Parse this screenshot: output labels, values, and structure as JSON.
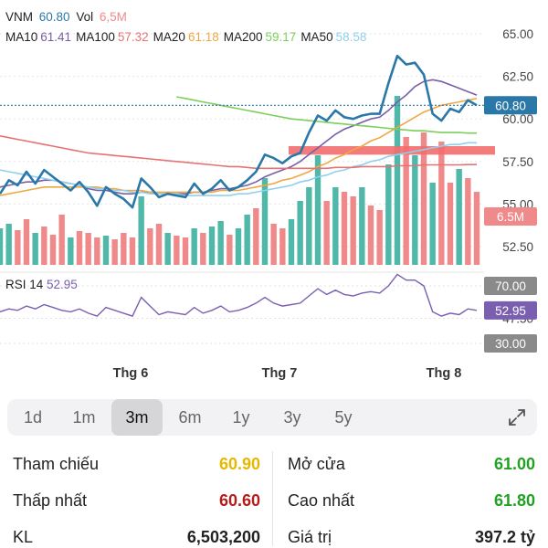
{
  "header": {
    "symbol": "VNM",
    "price": "60.80",
    "vol_label": "Vol",
    "vol": "6,5M"
  },
  "ma_legend": [
    {
      "label": "MA10",
      "value": "61.41",
      "color": "#7b5ea7"
    },
    {
      "label": "MA100",
      "value": "57.32",
      "color": "#e57373"
    },
    {
      "label": "MA20",
      "value": "61.18",
      "color": "#f0a742"
    },
    {
      "label": "MA200",
      "value": "59.17",
      "color": "#7ccf5a"
    },
    {
      "label": "MA50",
      "value": "58.58",
      "color": "#8fd0ee"
    }
  ],
  "colors": {
    "price_line": "#2a78a8",
    "vol_up": "#4fb8a9",
    "vol_down": "#f08a8a",
    "rsi_line": "#7a5fb0",
    "support_zone": "#f26d6d"
  },
  "chart_data": {
    "type": "line",
    "price_axis": {
      "ticks": [
        "65.00",
        "62.50",
        "60.00",
        "57.50",
        "55.00",
        "52.50"
      ],
      "ylim": [
        52.5,
        65.0
      ]
    },
    "price_current_label": "60.80",
    "volume_current_label": "6.5M",
    "x_labels": [
      "Thg 6",
      "Thg 7",
      "Thg 8"
    ],
    "price": [
      55.6,
      56.4,
      56.1,
      56.9,
      56.2,
      57.0,
      56.6,
      56.2,
      55.8,
      56.3,
      55.7,
      54.9,
      56.0,
      55.6,
      55.3,
      54.8,
      56.5,
      56.0,
      55.4,
      55.6,
      55.5,
      55.4,
      56.2,
      55.6,
      55.9,
      56.4,
      55.8,
      56.0,
      56.4,
      56.9,
      57.9,
      57.7,
      57.4,
      57.8,
      58.0,
      59.2,
      60.2,
      59.9,
      60.5,
      60.1,
      60.0,
      60.2,
      60.3,
      60.3,
      62.1,
      63.7,
      63.2,
      63.3,
      62.6,
      60.3,
      59.9,
      60.6,
      60.4,
      61.1,
      60.8
    ],
    "ma_series": [
      {
        "name": "MA10",
        "values": [
          56.0,
          56.1,
          56.2,
          56.3,
          56.3,
          56.4,
          56.4,
          56.3,
          56.2,
          56.1,
          55.9,
          55.8,
          55.8,
          55.7,
          55.6,
          55.6,
          55.7,
          55.7,
          55.6,
          55.6,
          55.6,
          55.6,
          55.7,
          55.7,
          55.8,
          55.9,
          55.9,
          56.0,
          56.1,
          56.3,
          56.6,
          56.8,
          57.0,
          57.2,
          57.5,
          57.9,
          58.3,
          58.7,
          59.1,
          59.4,
          59.6,
          59.8,
          60.0,
          60.1,
          60.5,
          61.0,
          61.4,
          61.9,
          62.2,
          62.3,
          62.2,
          62.0,
          61.8,
          61.6,
          61.4
        ]
      },
      {
        "name": "MA20",
        "values": [
          55.5,
          55.6,
          55.7,
          55.8,
          55.9,
          56.0,
          56.0,
          56.0,
          56.0,
          56.0,
          56.0,
          56.0,
          55.9,
          55.9,
          55.8,
          55.8,
          55.8,
          55.7,
          55.7,
          55.7,
          55.7,
          55.7,
          55.7,
          55.7,
          55.7,
          55.8,
          55.8,
          55.8,
          55.9,
          56.0,
          56.1,
          56.2,
          56.4,
          56.5,
          56.7,
          56.9,
          57.2,
          57.4,
          57.7,
          57.9,
          58.2,
          58.4,
          58.7,
          58.9,
          59.2,
          59.5,
          59.8,
          60.1,
          60.4,
          60.6,
          60.8,
          60.9,
          61.0,
          61.1,
          61.2
        ]
      },
      {
        "name": "MA50",
        "values": [
          57.0,
          56.9,
          56.8,
          56.7,
          56.6,
          56.5,
          56.4,
          56.3,
          56.2,
          56.1,
          56.0,
          55.9,
          55.9,
          55.8,
          55.8,
          55.7,
          55.7,
          55.6,
          55.6,
          55.6,
          55.6,
          55.5,
          55.5,
          55.5,
          55.5,
          55.5,
          55.5,
          55.6,
          55.6,
          55.7,
          55.8,
          55.9,
          56.0,
          56.1,
          56.3,
          56.4,
          56.6,
          56.7,
          56.9,
          57.0,
          57.2,
          57.3,
          57.5,
          57.6,
          57.8,
          57.9,
          58.0,
          58.1,
          58.2,
          58.3,
          58.4,
          58.5,
          58.5,
          58.6,
          58.6
        ]
      },
      {
        "name": "MA100",
        "values": [
          59.0,
          58.9,
          58.8,
          58.7,
          58.6,
          58.5,
          58.4,
          58.3,
          58.2,
          58.1,
          58.0,
          57.95,
          57.9,
          57.85,
          57.8,
          57.75,
          57.7,
          57.65,
          57.6,
          57.55,
          57.5,
          57.45,
          57.4,
          57.35,
          57.3,
          57.25,
          57.2,
          57.2,
          57.15,
          57.1,
          57.1,
          57.1,
          57.1,
          57.1,
          57.1,
          57.1,
          57.1,
          57.1,
          57.15,
          57.15,
          57.15,
          57.2,
          57.2,
          57.2,
          57.2,
          57.25,
          57.25,
          57.25,
          57.3,
          57.3,
          57.3,
          57.3,
          57.3,
          57.32,
          57.32
        ]
      },
      {
        "name": "MA200",
        "values": [
          null,
          null,
          null,
          null,
          null,
          null,
          null,
          null,
          null,
          null,
          null,
          null,
          null,
          null,
          null,
          null,
          null,
          null,
          null,
          null,
          61.3,
          61.2,
          61.1,
          61.0,
          60.9,
          60.8,
          60.7,
          60.6,
          60.5,
          60.4,
          60.3,
          60.2,
          60.1,
          60.0,
          59.95,
          59.9,
          59.85,
          59.8,
          59.75,
          59.7,
          59.65,
          59.6,
          59.55,
          59.5,
          59.45,
          59.4,
          59.35,
          59.3,
          59.3,
          59.25,
          59.2,
          59.2,
          59.2,
          59.17,
          59.17
        ]
      }
    ],
    "volume": [
      {
        "v": 0.4,
        "up": true
      },
      {
        "v": 0.45,
        "up": true
      },
      {
        "v": 0.38,
        "up": false
      },
      {
        "v": 0.5,
        "up": false
      },
      {
        "v": 0.35,
        "up": true
      },
      {
        "v": 0.42,
        "up": false
      },
      {
        "v": 0.33,
        "up": false
      },
      {
        "v": 0.55,
        "up": false
      },
      {
        "v": 0.3,
        "up": true
      },
      {
        "v": 0.37,
        "up": false
      },
      {
        "v": 0.35,
        "up": false
      },
      {
        "v": 0.3,
        "up": false
      },
      {
        "v": 0.32,
        "up": true
      },
      {
        "v": 0.28,
        "up": false
      },
      {
        "v": 0.35,
        "up": false
      },
      {
        "v": 0.3,
        "up": false
      },
      {
        "v": 0.75,
        "up": true
      },
      {
        "v": 0.4,
        "up": false
      },
      {
        "v": 0.45,
        "up": false
      },
      {
        "v": 0.35,
        "up": true
      },
      {
        "v": 0.32,
        "up": false
      },
      {
        "v": 0.3,
        "up": false
      },
      {
        "v": 0.4,
        "up": true
      },
      {
        "v": 0.35,
        "up": false
      },
      {
        "v": 0.42,
        "up": true
      },
      {
        "v": 0.48,
        "up": true
      },
      {
        "v": 0.33,
        "up": false
      },
      {
        "v": 0.4,
        "up": true
      },
      {
        "v": 0.55,
        "up": true
      },
      {
        "v": 0.62,
        "up": false
      },
      {
        "v": 0.95,
        "up": true
      },
      {
        "v": 0.45,
        "up": false
      },
      {
        "v": 0.4,
        "up": false
      },
      {
        "v": 0.5,
        "up": true
      },
      {
        "v": 0.7,
        "up": true
      },
      {
        "v": 0.85,
        "up": true
      },
      {
        "v": 1.2,
        "up": true
      },
      {
        "v": 0.7,
        "up": false
      },
      {
        "v": 0.85,
        "up": true
      },
      {
        "v": 0.8,
        "up": false
      },
      {
        "v": 0.75,
        "up": false
      },
      {
        "v": 0.85,
        "up": true
      },
      {
        "v": 0.65,
        "up": false
      },
      {
        "v": 0.6,
        "up": false
      },
      {
        "v": 1.1,
        "up": true
      },
      {
        "v": 1.85,
        "up": true
      },
      {
        "v": 1.4,
        "up": false
      },
      {
        "v": 1.2,
        "up": true
      },
      {
        "v": 1.45,
        "up": false
      },
      {
        "v": 0.9,
        "up": true
      },
      {
        "v": 1.35,
        "up": false
      },
      {
        "v": 0.9,
        "up": false
      },
      {
        "v": 1.05,
        "up": true
      },
      {
        "v": 0.95,
        "up": false
      },
      {
        "v": 0.8,
        "up": false
      }
    ],
    "support_zone": {
      "from_index": 33,
      "to_index": 54,
      "low": 57.9,
      "high": 58.4
    },
    "rsi": {
      "label": "RSI 14",
      "value": "52.95",
      "ticks": [
        {
          "value": 70,
          "label": "70.00",
          "boxed": true
        },
        {
          "value": 47.5,
          "label": "47.50",
          "boxed": false
        },
        {
          "value": 30,
          "label": "30.00",
          "boxed": true
        }
      ],
      "ylim": [
        25,
        85
      ],
      "values": [
        52,
        54,
        53,
        56,
        54,
        57,
        55,
        53,
        52,
        54,
        51,
        49,
        55,
        53,
        51,
        49,
        62,
        56,
        50,
        52,
        51,
        50,
        55,
        51,
        53,
        56,
        52,
        53,
        55,
        58,
        62,
        58,
        56,
        57,
        58,
        63,
        68,
        64,
        67,
        64,
        63,
        65,
        66,
        65,
        70,
        78,
        74,
        74,
        70,
        52,
        49,
        51,
        50,
        54,
        53
      ]
    }
  },
  "toolbar": {
    "timeframes": [
      "1d",
      "1m",
      "3m",
      "6m",
      "1y",
      "3y",
      "5y"
    ],
    "active": "3m",
    "expand_icon": "expand-diagonal-icon"
  },
  "stats": {
    "reference": {
      "label": "Tham chiếu",
      "value": "60.90",
      "color": "#e6b800"
    },
    "open": {
      "label": "Mở cửa",
      "value": "61.00",
      "color": "#22a022"
    },
    "low": {
      "label": "Thấp nhất",
      "value": "60.60",
      "color": "#b51c1c"
    },
    "high": {
      "label": "Cao nhất",
      "value": "61.80",
      "color": "#22a022"
    },
    "volume": {
      "label": "KL",
      "value": "6,503,200",
      "color": "#222222"
    },
    "turnover": {
      "label": "Giá trị",
      "value": "397.2 tỷ",
      "color": "#222222"
    }
  }
}
